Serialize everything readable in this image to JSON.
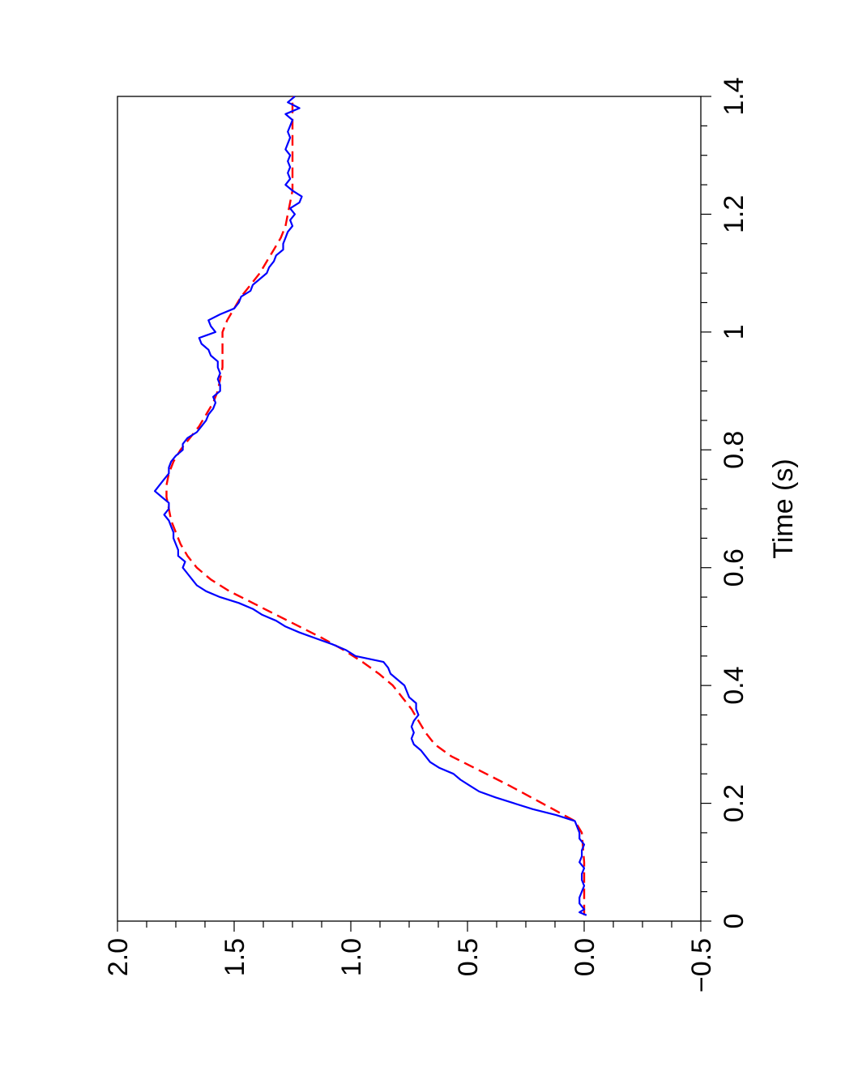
{
  "chart_data": {
    "type": "line",
    "orientation": "rotated 90 degrees counter-clockwise (x axis runs bottom-to-top along the right edge)",
    "xlabel": "Time (s)",
    "ylabel": "",
    "xlim": [
      0,
      1.4
    ],
    "ylim": [
      -0.5,
      2.0
    ],
    "x_ticks": [
      "0",
      "0.2",
      "0.4",
      "0.6",
      "0.8",
      "1",
      "1.2",
      "1.4"
    ],
    "y_ticks": [
      "−0.5",
      "0.0",
      "0.5",
      "1.0",
      "1.5",
      "2.0"
    ],
    "grid": false,
    "series": [
      {
        "style": "solid",
        "color": "#0000ff",
        "x": [
          0.01,
          0.015,
          0.02,
          0.03,
          0.04,
          0.05,
          0.06,
          0.07,
          0.08,
          0.09,
          0.1,
          0.11,
          0.12,
          0.13,
          0.14,
          0.15,
          0.16,
          0.17,
          0.18,
          0.19,
          0.2,
          0.21,
          0.22,
          0.23,
          0.24,
          0.25,
          0.26,
          0.27,
          0.28,
          0.29,
          0.3,
          0.31,
          0.32,
          0.33,
          0.34,
          0.35,
          0.36,
          0.37,
          0.38,
          0.39,
          0.4,
          0.41,
          0.42,
          0.43,
          0.44,
          0.45,
          0.46,
          0.47,
          0.48,
          0.49,
          0.5,
          0.51,
          0.52,
          0.53,
          0.54,
          0.55,
          0.56,
          0.57,
          0.58,
          0.59,
          0.6,
          0.61,
          0.62,
          0.63,
          0.64,
          0.65,
          0.66,
          0.67,
          0.68,
          0.69,
          0.7,
          0.71,
          0.72,
          0.73,
          0.74,
          0.75,
          0.76,
          0.77,
          0.78,
          0.79,
          0.8,
          0.81,
          0.82,
          0.83,
          0.84,
          0.85,
          0.86,
          0.87,
          0.88,
          0.89,
          0.9,
          0.91,
          0.92,
          0.93,
          0.94,
          0.95,
          0.96,
          0.97,
          0.98,
          0.99,
          1.0,
          1.01,
          1.02,
          1.03,
          1.04,
          1.05,
          1.06,
          1.07,
          1.08,
          1.09,
          1.1,
          1.11,
          1.12,
          1.13,
          1.14,
          1.15,
          1.16,
          1.17,
          1.18,
          1.19,
          1.2,
          1.21,
          1.22,
          1.23,
          1.24,
          1.25,
          1.26,
          1.27,
          1.28,
          1.29,
          1.3,
          1.31,
          1.32,
          1.33,
          1.34,
          1.35,
          1.36,
          1.37,
          1.38,
          1.39,
          1.4
        ],
        "y": [
          -0.01,
          0.02,
          0.0,
          0.02,
          0.02,
          0.01,
          0.0,
          0.01,
          0.01,
          0.0,
          0.02,
          0.01,
          0.01,
          0.0,
          0.02,
          0.02,
          0.03,
          0.04,
          0.12,
          0.22,
          0.3,
          0.38,
          0.45,
          0.49,
          0.53,
          0.56,
          0.62,
          0.66,
          0.68,
          0.7,
          0.73,
          0.74,
          0.73,
          0.74,
          0.73,
          0.71,
          0.72,
          0.72,
          0.75,
          0.76,
          0.77,
          0.8,
          0.83,
          0.84,
          0.86,
          0.98,
          1.02,
          1.08,
          1.15,
          1.22,
          1.28,
          1.32,
          1.38,
          1.42,
          1.48,
          1.56,
          1.62,
          1.66,
          1.68,
          1.7,
          1.72,
          1.71,
          1.74,
          1.74,
          1.75,
          1.76,
          1.76,
          1.77,
          1.78,
          1.8,
          1.78,
          1.78,
          1.81,
          1.84,
          1.82,
          1.8,
          1.78,
          1.78,
          1.77,
          1.75,
          1.72,
          1.72,
          1.7,
          1.66,
          1.64,
          1.62,
          1.61,
          1.59,
          1.58,
          1.59,
          1.56,
          1.56,
          1.57,
          1.56,
          1.57,
          1.57,
          1.6,
          1.61,
          1.64,
          1.65,
          1.58,
          1.6,
          1.61,
          1.56,
          1.5,
          1.48,
          1.47,
          1.43,
          1.42,
          1.39,
          1.36,
          1.35,
          1.33,
          1.32,
          1.29,
          1.29,
          1.28,
          1.27,
          1.25,
          1.26,
          1.24,
          1.26,
          1.22,
          1.21,
          1.25,
          1.28,
          1.26,
          1.27,
          1.26,
          1.27,
          1.26,
          1.28,
          1.27,
          1.26,
          1.27,
          1.26,
          1.25,
          1.28,
          1.22,
          1.27,
          1.24
        ]
      },
      {
        "style": "dashed",
        "color": "#ff0000",
        "x": [
          0.01,
          0.05,
          0.1,
          0.15,
          0.17,
          0.2,
          0.23,
          0.26,
          0.28,
          0.3,
          0.32,
          0.34,
          0.36,
          0.38,
          0.4,
          0.42,
          0.44,
          0.46,
          0.48,
          0.5,
          0.52,
          0.54,
          0.56,
          0.58,
          0.6,
          0.62,
          0.64,
          0.66,
          0.68,
          0.7,
          0.72,
          0.74,
          0.76,
          0.78,
          0.8,
          0.82,
          0.84,
          0.86,
          0.88,
          0.9,
          0.92,
          0.94,
          0.96,
          0.98,
          1.0,
          1.02,
          1.04,
          1.06,
          1.08,
          1.1,
          1.12,
          1.14,
          1.16,
          1.18,
          1.2,
          1.22,
          1.24,
          1.26,
          1.28,
          1.3,
          1.32,
          1.34,
          1.36,
          1.38,
          1.4
        ],
        "y": [
          0.0,
          0.0,
          0.0,
          0.01,
          0.04,
          0.18,
          0.32,
          0.47,
          0.57,
          0.64,
          0.68,
          0.71,
          0.74,
          0.78,
          0.82,
          0.88,
          0.95,
          1.03,
          1.12,
          1.22,
          1.32,
          1.42,
          1.52,
          1.6,
          1.66,
          1.7,
          1.73,
          1.75,
          1.77,
          1.78,
          1.79,
          1.79,
          1.78,
          1.76,
          1.73,
          1.69,
          1.65,
          1.62,
          1.59,
          1.57,
          1.56,
          1.55,
          1.55,
          1.55,
          1.55,
          1.53,
          1.5,
          1.47,
          1.43,
          1.39,
          1.36,
          1.33,
          1.3,
          1.28,
          1.27,
          1.26,
          1.25,
          1.25,
          1.25,
          1.25,
          1.25,
          1.25,
          1.25,
          1.25,
          1.25
        ]
      }
    ]
  }
}
